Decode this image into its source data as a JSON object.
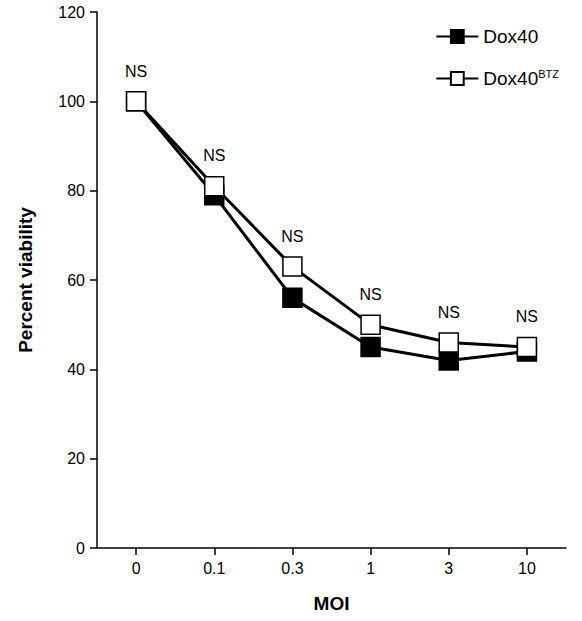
{
  "chart_data": {
    "type": "line",
    "x_label": "MOI",
    "y_label": "Percent viability",
    "categories": [
      "0",
      "0.1",
      "0.3",
      "1",
      "3",
      "10"
    ],
    "series": [
      {
        "name": "Dox40",
        "color": "#000000",
        "marker": "filled-square",
        "values": [
          100,
          79,
          56,
          45,
          42,
          44
        ]
      },
      {
        "name": "Dox40BTZ",
        "color": "#000000",
        "marker": "open-square",
        "values": [
          100,
          81,
          63,
          50,
          46,
          45
        ]
      }
    ],
    "annotations": [
      "NS",
      "NS",
      "NS",
      "NS",
      "NS",
      "NS"
    ],
    "ylim": [
      0,
      120
    ],
    "yticks": [
      0,
      20,
      40,
      60,
      80,
      100,
      120
    ],
    "grid": false,
    "legend": "upper right"
  }
}
